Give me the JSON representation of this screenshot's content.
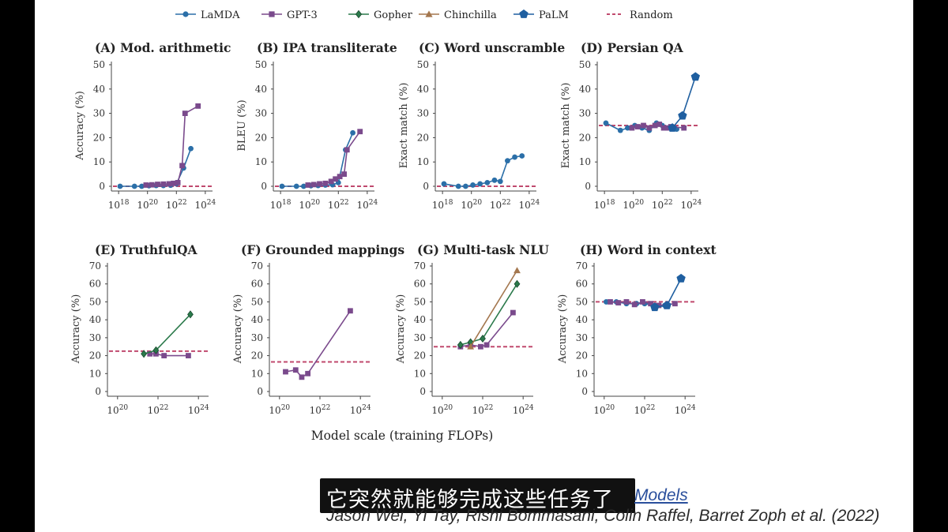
{
  "legend": [
    {
      "name": "LaMDA",
      "color": "#2b6fa8",
      "marker": "circle"
    },
    {
      "name": "GPT-3",
      "color": "#7a4a8c",
      "marker": "square"
    },
    {
      "name": "Gopher",
      "color": "#2b7a4b",
      "marker": "diamond"
    },
    {
      "name": "Chinchilla",
      "color": "#a4774e",
      "marker": "triangle"
    },
    {
      "name": "PaLM",
      "color": "#1f5fa0",
      "marker": "pentagon"
    },
    {
      "name": "Random",
      "color": "#c04a6e",
      "marker": "dash"
    }
  ],
  "xlabel_shared": "Model scale (training FLOPs)",
  "subtitle": "它突然就能够完成这些任务了",
  "citation": {
    "link_text": "Models",
    "authors": "Jason Wei, Yi Tay, Rishi Bommasani, Colin Raffel, Barret Zoph et al. (2022)"
  },
  "chart_data": [
    {
      "type": "line",
      "title": "(A) Mod. arithmetic",
      "ylabel": "Accuracy (%)",
      "ylim": [
        0,
        50
      ],
      "yticks": [
        0,
        10,
        20,
        30,
        40,
        50
      ],
      "xlim_log": [
        17.5,
        24.5
      ],
      "xticks_log": [
        18,
        20,
        22,
        24
      ],
      "random": 0,
      "series": [
        {
          "name": "LaMDA",
          "x_log": [
            18.1,
            19.1,
            19.6,
            20.1,
            20.6,
            21.1,
            21.6,
            22.0,
            22.5,
            23.0
          ],
          "values": [
            0,
            0,
            0,
            0.2,
            0.3,
            0.3,
            0.4,
            1,
            7.5,
            15.5
          ]
        },
        {
          "name": "GPT-3",
          "x_log": [
            19.9,
            20.3,
            20.7,
            21.1,
            21.5,
            21.8,
            22.1,
            22.4,
            22.6,
            23.5
          ],
          "values": [
            0.5,
            0.6,
            0.8,
            0.9,
            1,
            1.2,
            1.5,
            8.5,
            30,
            33
          ]
        }
      ]
    },
    {
      "type": "line",
      "title": "(B) IPA transliterate",
      "ylabel": "BLEU (%)",
      "ylim": [
        0,
        50
      ],
      "yticks": [
        0,
        10,
        20,
        30,
        40,
        50
      ],
      "xlim_log": [
        17.5,
        24.5
      ],
      "xticks_log": [
        18,
        20,
        22,
        24
      ],
      "random": 0,
      "series": [
        {
          "name": "LaMDA",
          "x_log": [
            18.1,
            19.1,
            19.6,
            20.1,
            20.6,
            21.1,
            21.6,
            22.0,
            22.5,
            23.0
          ],
          "values": [
            0,
            0,
            0,
            0.2,
            0.3,
            0.5,
            0.6,
            1.5,
            15,
            22
          ]
        },
        {
          "name": "GPT-3",
          "x_log": [
            19.9,
            20.3,
            20.7,
            21.1,
            21.5,
            21.8,
            22.1,
            22.4,
            22.6,
            23.5
          ],
          "values": [
            0.5,
            0.7,
            1,
            1.2,
            2,
            3,
            4,
            5,
            15,
            22.5
          ]
        }
      ]
    },
    {
      "type": "line",
      "title": "(C) Word unscramble",
      "ylabel": "Exact match (%)",
      "ylim": [
        0,
        50
      ],
      "yticks": [
        0,
        10,
        20,
        30,
        40,
        50
      ],
      "xlim_log": [
        17.5,
        24.5
      ],
      "xticks_log": [
        18,
        20,
        22,
        24
      ],
      "random": 0,
      "series": [
        {
          "name": "LaMDA",
          "x_log": [
            18.1,
            19.1,
            19.6,
            20.1,
            20.6,
            21.1,
            21.6,
            22.0,
            22.5,
            23.0,
            23.5
          ],
          "values": [
            1,
            0,
            0,
            0.5,
            1,
            1.5,
            2.5,
            2,
            10.5,
            12,
            12.5
          ]
        }
      ]
    },
    {
      "type": "line",
      "title": "(D) Persian QA",
      "ylabel": "Exact match (%)",
      "ylim": [
        0,
        50
      ],
      "yticks": [
        0,
        10,
        20,
        30,
        40,
        50
      ],
      "xlim_log": [
        17.5,
        24.5
      ],
      "xticks_log": [
        18,
        20,
        22,
        24
      ],
      "random": 25,
      "series": [
        {
          "name": "LaMDA",
          "x_log": [
            18.1,
            19.1,
            19.6,
            20.1,
            20.6,
            21.1,
            21.6,
            22.0,
            22.5,
            23.0
          ],
          "values": [
            26,
            23,
            24,
            25,
            24,
            23,
            26,
            25,
            24,
            23.5
          ]
        },
        {
          "name": "GPT-3",
          "x_log": [
            19.9,
            20.3,
            20.7,
            21.1,
            21.5,
            21.8,
            22.1,
            22.4,
            22.6,
            23.5
          ],
          "values": [
            24,
            24.5,
            25,
            24,
            25,
            25.5,
            24,
            24,
            24.5,
            24
          ]
        },
        {
          "name": "PaLM",
          "x_log": [
            22.7,
            23.4,
            24.3
          ],
          "values": [
            24,
            29,
            45
          ]
        }
      ]
    },
    {
      "type": "line",
      "title": "(E) TruthfulQA",
      "ylabel": "Accuracy (%)",
      "ylim": [
        0,
        70
      ],
      "yticks": [
        0,
        10,
        20,
        30,
        40,
        50,
        60,
        70
      ],
      "xlim_log": [
        19.5,
        24.5
      ],
      "xticks_log": [
        20,
        22,
        24
      ],
      "random": 22.5,
      "series": [
        {
          "name": "GPT-3",
          "x_log": [
            21.6,
            21.9,
            22.3,
            23.5
          ],
          "values": [
            21,
            21,
            20,
            20
          ]
        },
        {
          "name": "Gopher",
          "x_log": [
            21.3,
            21.9,
            23.6
          ],
          "values": [
            21,
            23,
            43
          ]
        }
      ]
    },
    {
      "type": "line",
      "title": "(F) Grounded mappings",
      "ylabel": "Accuracy (%)",
      "ylim": [
        0,
        70
      ],
      "yticks": [
        0,
        10,
        20,
        30,
        40,
        50,
        60,
        70
      ],
      "xlim_log": [
        19.5,
        24.5
      ],
      "xticks_log": [
        20,
        22,
        24
      ],
      "random": 16.5,
      "series": [
        {
          "name": "GPT-3",
          "x_log": [
            20.3,
            20.8,
            21.1,
            21.4,
            23.5
          ],
          "values": [
            11,
            12,
            8,
            10,
            45
          ]
        }
      ]
    },
    {
      "type": "line",
      "title": "(G) Multi-task NLU",
      "ylabel": "Accuracy (%)",
      "ylim": [
        0,
        70
      ],
      "yticks": [
        0,
        10,
        20,
        30,
        40,
        50,
        60,
        70
      ],
      "xlim_log": [
        19.5,
        24.5
      ],
      "xticks_log": [
        20,
        22,
        24
      ],
      "random": 25,
      "series": [
        {
          "name": "GPT-3",
          "x_log": [
            20.9,
            21.4,
            21.9,
            22.2,
            23.5
          ],
          "values": [
            25,
            26,
            25,
            26,
            44
          ]
        },
        {
          "name": "Gopher",
          "x_log": [
            20.9,
            21.4,
            22.0,
            23.7
          ],
          "values": [
            26,
            27.5,
            29.5,
            60
          ]
        },
        {
          "name": "Chinchilla",
          "x_log": [
            21.4,
            23.7
          ],
          "values": [
            25,
            67.5
          ]
        }
      ]
    },
    {
      "type": "line",
      "title": "(H) Word in context",
      "ylabel": "Accuracy (%)",
      "ylim": [
        0,
        70
      ],
      "yticks": [
        0,
        10,
        20,
        30,
        40,
        50,
        60,
        70
      ],
      "xlim_log": [
        19.5,
        24.5
      ],
      "xticks_log": [
        20,
        22,
        24
      ],
      "random": 50,
      "series": [
        {
          "name": "LaMDA",
          "x_log": [
            20.1,
            20.6,
            21.1,
            21.6,
            22.0,
            22.5,
            23.0
          ],
          "values": [
            50,
            50,
            49,
            49,
            49,
            48,
            48
          ]
        },
        {
          "name": "GPT-3",
          "x_log": [
            20.3,
            20.7,
            21.1,
            21.5,
            21.9,
            22.3,
            22.7,
            23.5
          ],
          "values": [
            50,
            49.5,
            50,
            48.5,
            50,
            49,
            48,
            49
          ]
        },
        {
          "name": "PaLM",
          "x_log": [
            22.5,
            23.1,
            23.8
          ],
          "values": [
            47,
            48,
            63
          ]
        }
      ]
    }
  ]
}
